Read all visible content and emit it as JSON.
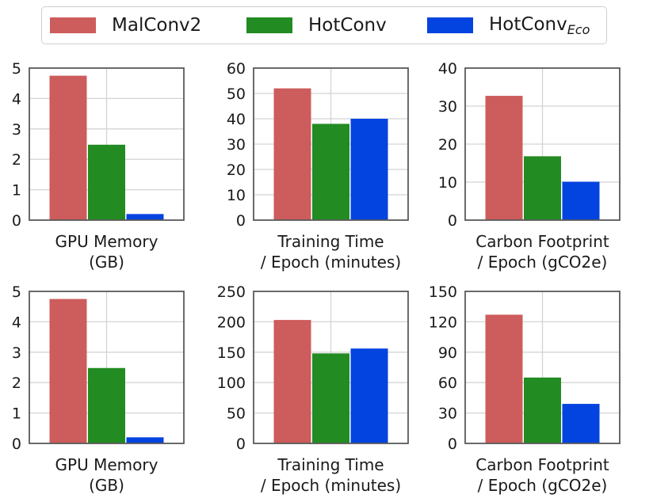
{
  "legend": {
    "entries": [
      {
        "label": "MalConv2",
        "sub": "",
        "color": "#cd5c5c"
      },
      {
        "label": "HotConv",
        "sub": "",
        "color": "#228b22"
      },
      {
        "label": "HotConv",
        "sub": "Eco",
        "color": "#0343df"
      }
    ]
  },
  "chart_data": [
    {
      "type": "bar",
      "xlabel": [
        "GPU Memory",
        "(GB)"
      ],
      "series": [
        {
          "name": "MalConv2",
          "values": [
            4.75
          ]
        },
        {
          "name": "HotConv",
          "values": [
            2.48
          ]
        },
        {
          "name": "HotConvEco",
          "values": [
            0.2
          ]
        }
      ],
      "ylim": [
        0,
        5
      ],
      "yticks": [
        0,
        1,
        2,
        3,
        4,
        5
      ],
      "grid": true
    },
    {
      "type": "bar",
      "xlabel": [
        "Training Time",
        "/ Epoch (minutes)"
      ],
      "series": [
        {
          "name": "MalConv2",
          "values": [
            52
          ]
        },
        {
          "name": "HotConv",
          "values": [
            38
          ]
        },
        {
          "name": "HotConvEco",
          "values": [
            40
          ]
        }
      ],
      "ylim": [
        0,
        60
      ],
      "yticks": [
        0,
        10,
        20,
        30,
        40,
        50,
        60
      ],
      "grid": true
    },
    {
      "type": "bar",
      "xlabel": [
        "Carbon Footprint",
        "/ Epoch (gCO2e)"
      ],
      "series": [
        {
          "name": "MalConv2",
          "values": [
            32.7
          ]
        },
        {
          "name": "HotConv",
          "values": [
            16.8
          ]
        },
        {
          "name": "HotConvEco",
          "values": [
            10.1
          ]
        }
      ],
      "ylim": [
        0,
        40
      ],
      "yticks": [
        0,
        10,
        20,
        30,
        40
      ],
      "grid": true
    },
    {
      "type": "bar",
      "xlabel": [
        "GPU Memory",
        "(GB)"
      ],
      "series": [
        {
          "name": "MalConv2",
          "values": [
            4.75
          ]
        },
        {
          "name": "HotConv",
          "values": [
            2.48
          ]
        },
        {
          "name": "HotConvEco",
          "values": [
            0.2
          ]
        }
      ],
      "ylim": [
        0,
        5
      ],
      "yticks": [
        0,
        1,
        2,
        3,
        4,
        5
      ],
      "grid": true
    },
    {
      "type": "bar",
      "xlabel": [
        "Training Time",
        "/ Epoch (minutes)"
      ],
      "series": [
        {
          "name": "MalConv2",
          "values": [
            203
          ]
        },
        {
          "name": "HotConv",
          "values": [
            148
          ]
        },
        {
          "name": "HotConvEco",
          "values": [
            156
          ]
        }
      ],
      "ylim": [
        0,
        250
      ],
      "yticks": [
        0,
        50,
        100,
        150,
        200,
        250
      ],
      "grid": true
    },
    {
      "type": "bar",
      "xlabel": [
        "Carbon Footprint",
        "/ Epoch (gCO2e)"
      ],
      "series": [
        {
          "name": "MalConv2",
          "values": [
            127
          ]
        },
        {
          "name": "HotConv",
          "values": [
            65
          ]
        },
        {
          "name": "HotConvEco",
          "values": [
            39
          ]
        }
      ],
      "ylim": [
        0,
        150
      ],
      "yticks": [
        0,
        30,
        60,
        90,
        120,
        150
      ],
      "grid": true
    }
  ]
}
